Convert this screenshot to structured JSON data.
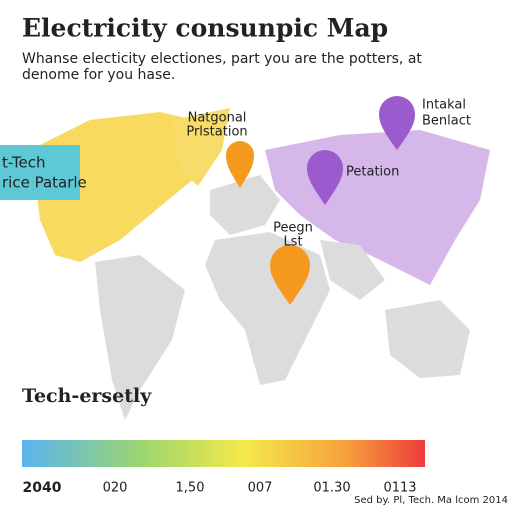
{
  "header": {
    "title": "Electricity consunpic Map",
    "subtitle": [
      "Whanse electicity electiones, part you are the potters, at",
      "denome for you hase."
    ]
  },
  "markers": [
    {
      "label": [
        "Natgonal",
        "Prlstation"
      ]
    },
    {
      "label": [
        "Intakal",
        "Benlact"
      ]
    },
    {
      "label": [
        "Petation"
      ]
    },
    {
      "label": [
        "Peegn",
        "Lst"
      ]
    }
  ],
  "callout": {
    "lines": [
      "t-Tech",
      "rice Patarle"
    ]
  },
  "legend": {
    "title": "Tech-ersetly",
    "labels": [
      "2040",
      "020",
      "1,50",
      "007",
      "01.30",
      "0113"
    ]
  },
  "footer": "Sed by. Pl, Tech. Ma lcom 2014"
}
